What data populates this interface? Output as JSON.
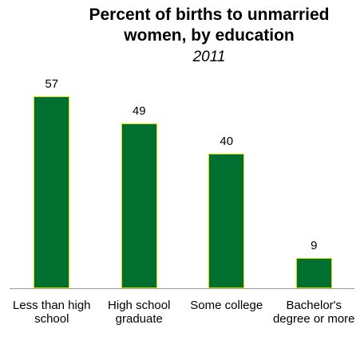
{
  "chart_data": {
    "type": "bar",
    "title": "Percent of births to unmarried women, by education",
    "subtitle": "2011",
    "categories": [
      "Less than high school",
      "High school graduate",
      "Some college",
      "Bachelor's degree or more"
    ],
    "values": [
      57,
      49,
      40,
      9
    ],
    "color": "#006f2f",
    "edge_color": "#d4e000"
  }
}
